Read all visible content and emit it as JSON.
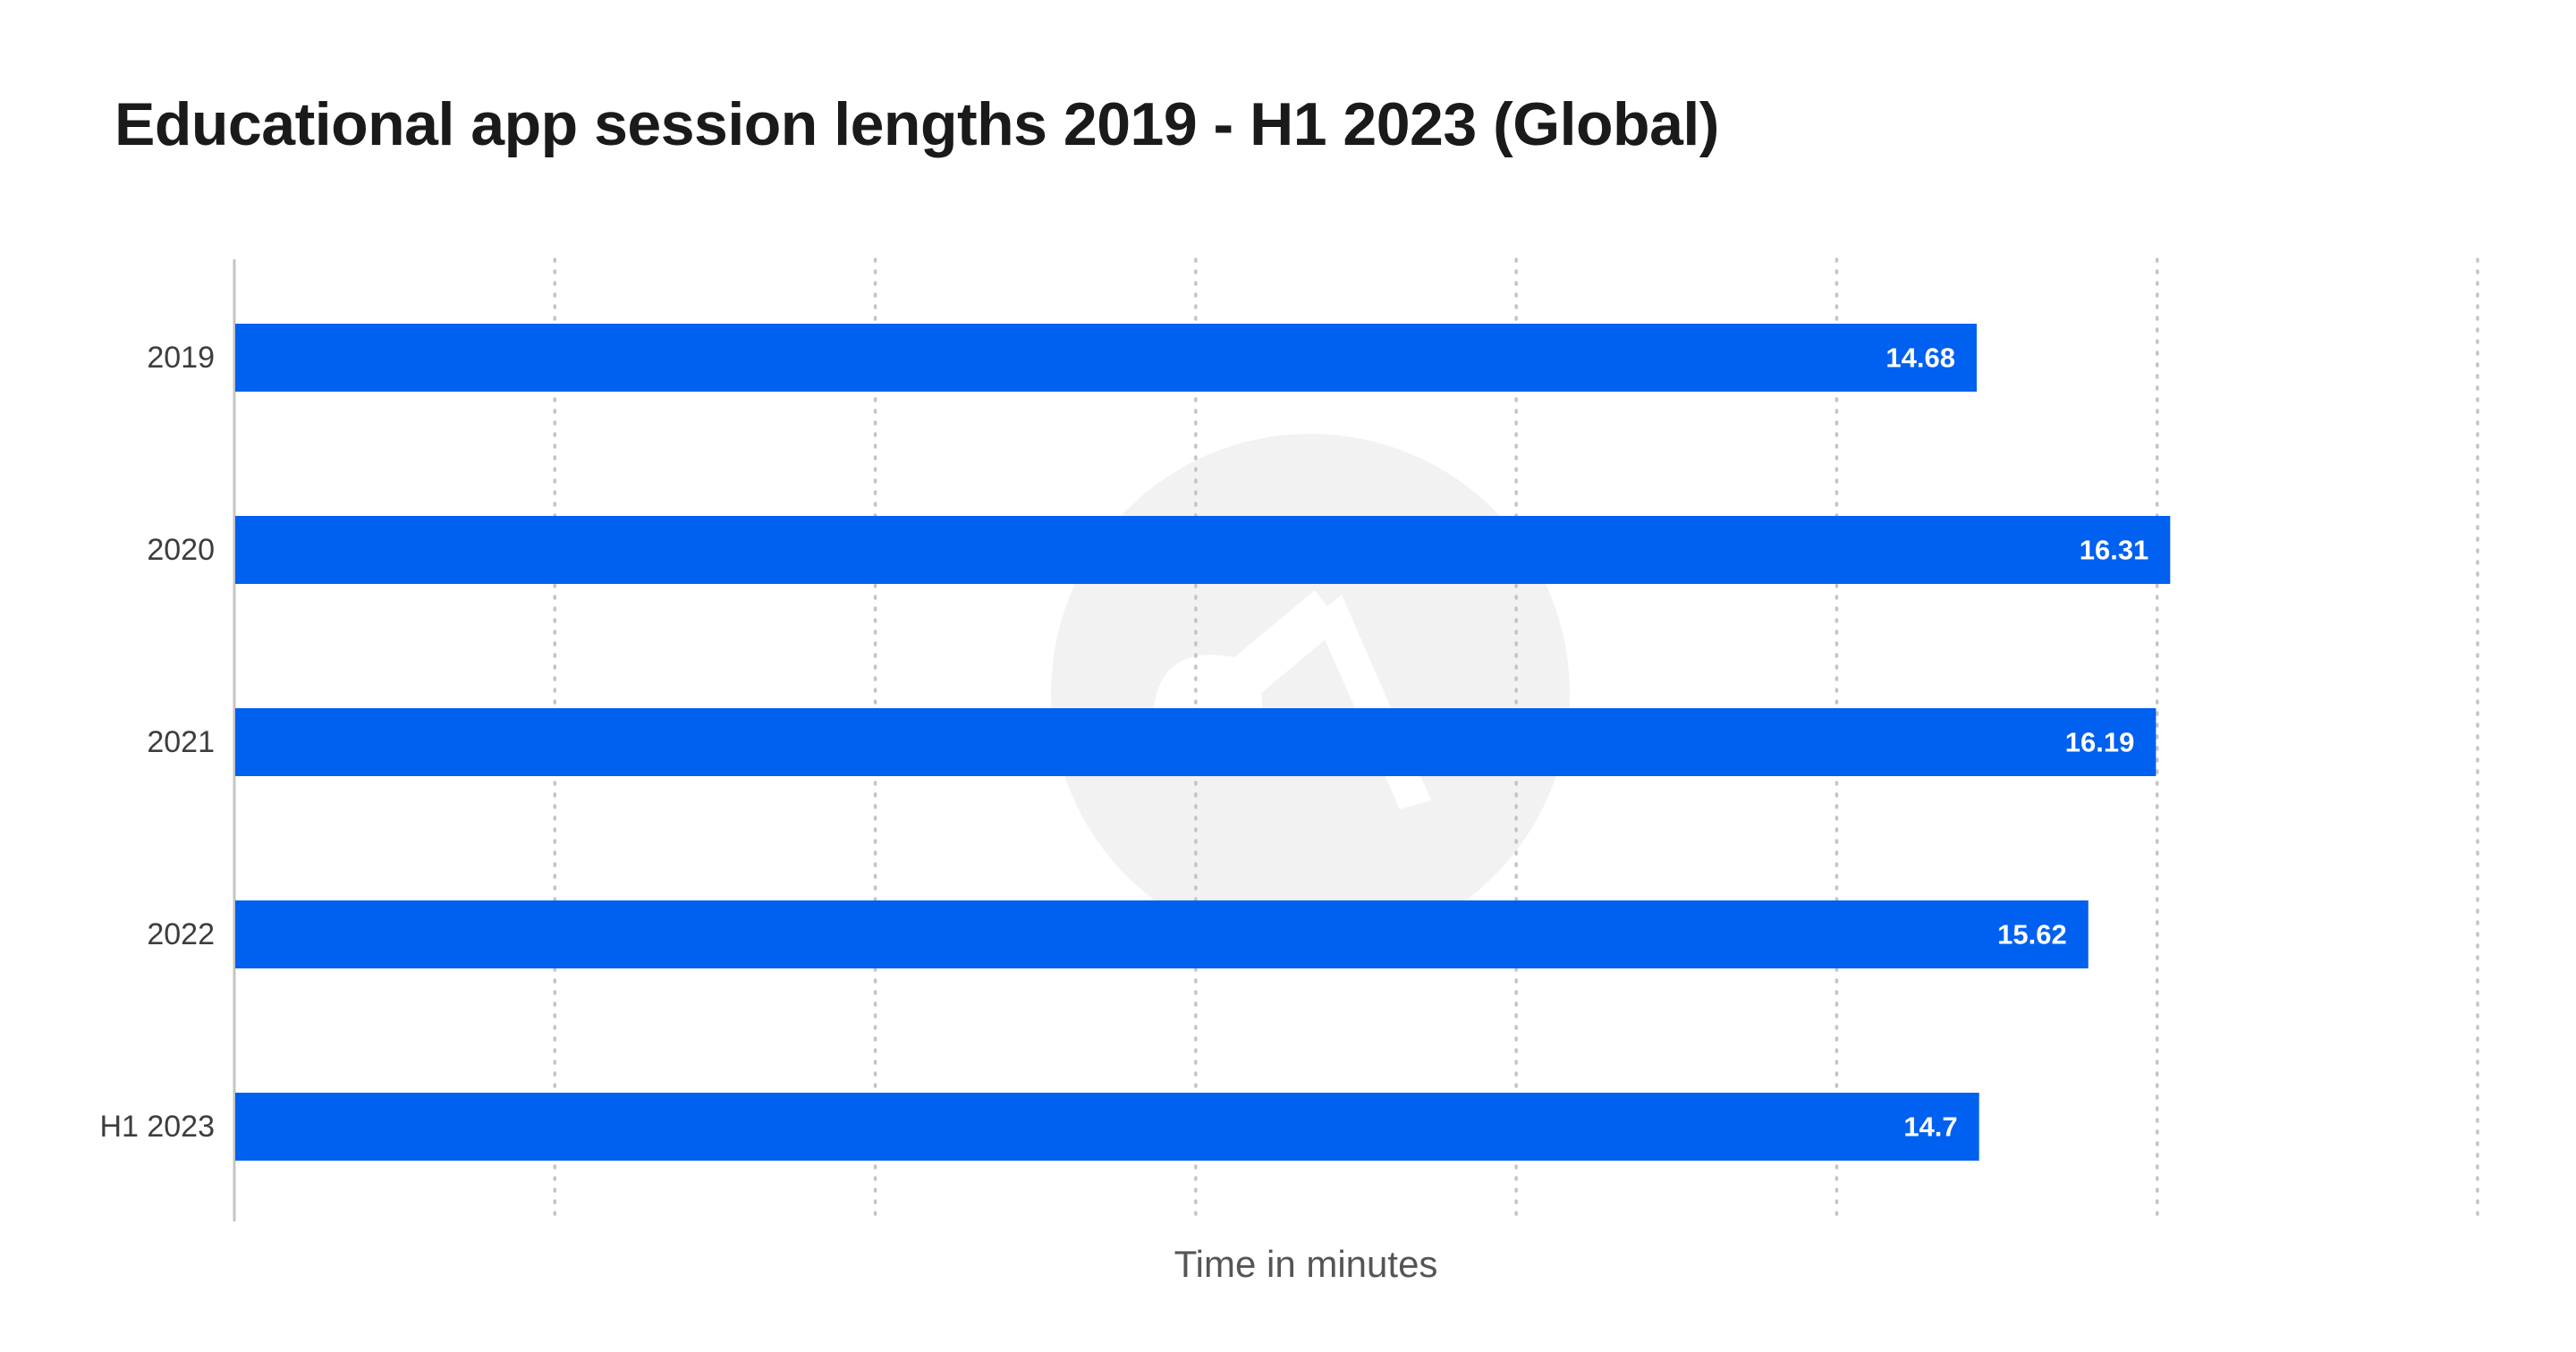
{
  "chart_data": {
    "type": "bar",
    "orientation": "horizontal",
    "title": "Educational app session lengths 2019 - H1 2023 (Global)",
    "xlabel": "Time in minutes",
    "ylabel": "",
    "categories": [
      "2019",
      "2020",
      "2021",
      "2022",
      "H1 2023"
    ],
    "series": [
      {
        "values": [
          14.68,
          16.31,
          16.19,
          15.62,
          14.7
        ],
        "data_labels": [
          "14.68",
          "16.31",
          "16.19",
          "15.62",
          "14.7"
        ],
        "color": "#0060f0"
      }
    ],
    "xlim": [
      0,
      7
    ],
    "xticks": [
      0,
      1,
      2,
      3,
      4,
      5,
      6,
      7
    ],
    "xtick_labels_visible": false,
    "grid": "vertical-dotted",
    "legend": "none",
    "colors": {
      "bar": "#0060f0",
      "bar_label": "#ffffff",
      "grid": "#c4c4c4",
      "axis": "#c4c4c4",
      "watermark": "#f2f2f2"
    }
  }
}
